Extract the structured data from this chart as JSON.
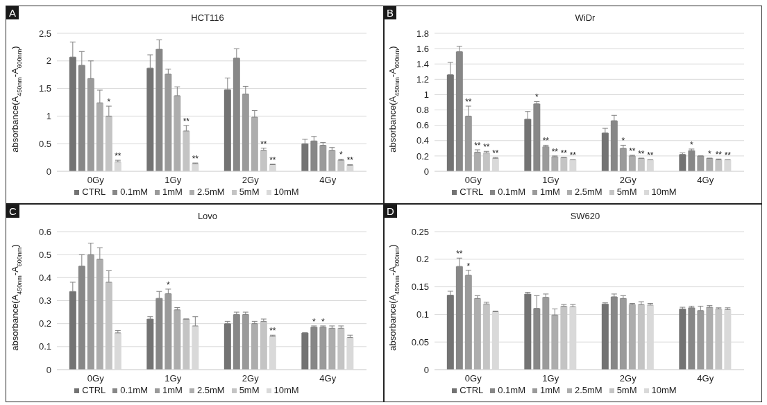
{
  "chart_data": [
    {
      "type": "bar",
      "title": "HCT116",
      "annotations": [
        "A"
      ],
      "ylabel": "absorbance(A$_{450nm}$-A$_{600nm}$)",
      "categories": [
        "0Gy",
        "1Gy",
        "2Gy",
        "4Gy"
      ],
      "ylim": [
        0,
        2.5
      ],
      "yticks": [
        0,
        0.5,
        1,
        1.5,
        2,
        2.5
      ],
      "grid": "y",
      "legend": "bottom",
      "series": [
        {
          "name": "CTRL",
          "color": "#737373",
          "values": [
            2.07,
            1.87,
            1.48,
            0.5
          ],
          "errors": [
            [
              2.07,
              2.34
            ],
            [
              1.87,
              2.11
            ],
            [
              1.48,
              1.69
            ],
            [
              0.5,
              0.58
            ]
          ]
        },
        {
          "name": "0.1mM",
          "color": "#878787",
          "values": [
            1.92,
            2.21,
            2.05,
            0.55
          ],
          "errors": [
            [
              1.92,
              2.17
            ],
            [
              2.21,
              2.38
            ],
            [
              2.05,
              2.22
            ],
            [
              0.55,
              0.63
            ]
          ]
        },
        {
          "name": "1mM",
          "color": "#9a9a9a",
          "values": [
            1.68,
            1.76,
            1.4,
            0.47
          ],
          "errors": [
            [
              1.68,
              2.0
            ],
            [
              1.76,
              1.85
            ],
            [
              1.4,
              1.54
            ],
            [
              0.47,
              0.52
            ]
          ]
        },
        {
          "name": "2.5mM",
          "color": "#adadad",
          "values": [
            1.24,
            1.37,
            0.98,
            0.38
          ],
          "errors": [
            [
              1.24,
              1.47
            ],
            [
              1.37,
              1.53
            ],
            [
              0.98,
              1.1
            ],
            [
              0.38,
              0.43
            ]
          ]
        },
        {
          "name": "5mM",
          "color": "#c4c4c4",
          "values": [
            1.0,
            0.73,
            0.38,
            0.2
          ],
          "errors": [
            [
              1.0,
              1.18
            ],
            [
              0.73,
              0.83
            ],
            [
              0.38,
              0.42
            ],
            [
              0.2,
              0.22
            ]
          ],
          "value_labels": [
            "*",
            "**",
            "**",
            "*"
          ]
        },
        {
          "name": "10mM",
          "color": "#d9d9d9",
          "values": [
            0.17,
            0.14,
            0.12,
            0.11
          ],
          "errors": [
            [
              0.17,
              0.2
            ],
            [
              0.14,
              0.15
            ],
            [
              0.12,
              0.13
            ],
            [
              0.11,
              0.12
            ]
          ],
          "value_labels": [
            "**",
            "**",
            "**",
            "**"
          ]
        }
      ]
    },
    {
      "type": "bar",
      "title": "WiDr",
      "annotations": [
        "B"
      ],
      "ylabel": "absorbance(A$_{450nm}$-A$_{600nm}$)",
      "categories": [
        "0Gy",
        "1Gy",
        "2Gy",
        "4Gy"
      ],
      "ylim": [
        0,
        1.8
      ],
      "yticks": [
        0,
        0.2,
        0.4,
        0.6,
        0.8,
        1,
        1.2,
        1.4,
        1.6,
        1.8
      ],
      "grid": "y",
      "legend": "bottom",
      "series": [
        {
          "name": "CTRL",
          "color": "#737373",
          "values": [
            1.26,
            0.68,
            0.5,
            0.22
          ],
          "errors": [
            [
              1.26,
              1.42
            ],
            [
              0.68,
              0.78
            ],
            [
              0.5,
              0.56
            ],
            [
              0.22,
              0.24
            ]
          ]
        },
        {
          "name": "0.1mM",
          "color": "#878787",
          "values": [
            1.56,
            0.88,
            0.66,
            0.27
          ],
          "errors": [
            [
              1.56,
              1.63
            ],
            [
              0.88,
              0.91
            ],
            [
              0.66,
              0.73
            ],
            [
              0.27,
              0.29
            ]
          ],
          "value_labels": [
            null,
            "*",
            null,
            "*"
          ]
        },
        {
          "name": "1mM",
          "color": "#9a9a9a",
          "values": [
            0.72,
            0.32,
            0.3,
            0.2
          ],
          "errors": [
            [
              0.72,
              0.85
            ],
            [
              0.32,
              0.34
            ],
            [
              0.3,
              0.34
            ],
            [
              0.2,
              0.2
            ]
          ],
          "value_labels": [
            "**",
            "**",
            "*",
            null
          ]
        },
        {
          "name": "2.5mM",
          "color": "#adadad",
          "values": [
            0.25,
            0.19,
            0.2,
            0.17
          ],
          "errors": [
            [
              0.25,
              0.28
            ],
            [
              0.19,
              0.2
            ],
            [
              0.2,
              0.21
            ],
            [
              0.17,
              0.17
            ]
          ],
          "value_labels": [
            "**",
            "**",
            "**",
            "*"
          ]
        },
        {
          "name": "5mM",
          "color": "#c4c4c4",
          "values": [
            0.24,
            0.18,
            0.17,
            0.15
          ],
          "errors": [
            [
              0.24,
              0.26
            ],
            [
              0.18,
              0.18
            ],
            [
              0.17,
              0.17
            ],
            [
              0.15,
              0.16
            ]
          ],
          "value_labels": [
            "**",
            "**",
            "**",
            "**"
          ]
        },
        {
          "name": "10mM",
          "color": "#d9d9d9",
          "values": [
            0.17,
            0.15,
            0.15,
            0.15
          ],
          "errors": [
            [
              0.17,
              0.18
            ],
            [
              0.15,
              0.15
            ],
            [
              0.15,
              0.15
            ],
            [
              0.15,
              0.15
            ]
          ],
          "value_labels": [
            "**",
            "**",
            "**",
            "**"
          ]
        }
      ]
    },
    {
      "type": "bar",
      "title": "Lovo",
      "annotations": [
        "C"
      ],
      "ylabel": "absorbance(A$_{450nm}$-A$_{600nm}$)",
      "categories": [
        "0Gy",
        "1Gy",
        "2Gy",
        "4Gy"
      ],
      "ylim": [
        0,
        0.6
      ],
      "yticks": [
        0,
        0.1,
        0.2,
        0.3,
        0.4,
        0.5,
        0.6
      ],
      "grid": "y",
      "legend": "bottom",
      "series": [
        {
          "name": "CTRL",
          "color": "#737373",
          "values": [
            0.34,
            0.22,
            0.2,
            0.16
          ],
          "errors": [
            [
              0.34,
              0.38
            ],
            [
              0.22,
              0.23
            ],
            [
              0.2,
              0.21
            ],
            [
              0.16,
              0.16
            ]
          ]
        },
        {
          "name": "0.1mM",
          "color": "#878787",
          "values": [
            0.45,
            0.31,
            0.24,
            0.185
          ],
          "errors": [
            [
              0.45,
              0.5
            ],
            [
              0.31,
              0.34
            ],
            [
              0.24,
              0.25
            ],
            [
              0.185,
              0.19
            ]
          ],
          "value_labels": [
            null,
            null,
            null,
            "*"
          ]
        },
        {
          "name": "1mM",
          "color": "#9a9a9a",
          "values": [
            0.5,
            0.33,
            0.24,
            0.185
          ],
          "errors": [
            [
              0.5,
              0.55
            ],
            [
              0.33,
              0.35
            ],
            [
              0.24,
              0.25
            ],
            [
              0.185,
              0.19
            ]
          ],
          "value_labels": [
            null,
            "*",
            null,
            "*"
          ]
        },
        {
          "name": "2.5mM",
          "color": "#adadad",
          "values": [
            0.48,
            0.26,
            0.2,
            0.18
          ],
          "errors": [
            [
              0.48,
              0.53
            ],
            [
              0.26,
              0.27
            ],
            [
              0.2,
              0.21
            ],
            [
              0.18,
              0.19
            ]
          ]
        },
        {
          "name": "5mM",
          "color": "#c4c4c4",
          "values": [
            0.38,
            0.22,
            0.21,
            0.18
          ],
          "errors": [
            [
              0.38,
              0.43
            ],
            [
              0.22,
              0.22
            ],
            [
              0.21,
              0.22
            ],
            [
              0.18,
              0.19
            ]
          ]
        },
        {
          "name": "10mM",
          "color": "#d9d9d9",
          "values": [
            0.16,
            0.19,
            0.145,
            0.14
          ],
          "errors": [
            [
              0.16,
              0.17
            ],
            [
              0.19,
              0.23
            ],
            [
              0.145,
              0.15
            ],
            [
              0.14,
              0.15
            ]
          ],
          "value_labels": [
            null,
            null,
            "**",
            null
          ]
        }
      ]
    },
    {
      "type": "bar",
      "title": "SW620",
      "annotations": [
        "D"
      ],
      "ylabel": "absorbance(A$_{450nm}$-A$_{600nm}$)",
      "categories": [
        "0Gy",
        "1Gy",
        "2Gy",
        "4Gy"
      ],
      "ylim": [
        0,
        0.25
      ],
      "yticks": [
        0,
        0.05,
        0.1,
        0.15,
        0.2,
        0.25
      ],
      "grid": "y",
      "legend": "bottom",
      "series": [
        {
          "name": "CTRL",
          "color": "#737373",
          "values": [
            0.135,
            0.137,
            0.119,
            0.11
          ],
          "errors": [
            [
              0.135,
              0.142
            ],
            [
              0.137,
              0.14
            ],
            [
              0.119,
              0.121
            ],
            [
              0.11,
              0.113
            ]
          ]
        },
        {
          "name": "0.1mM",
          "color": "#878787",
          "values": [
            0.187,
            0.111,
            0.132,
            0.112
          ],
          "errors": [
            [
              0.187,
              0.202
            ],
            [
              0.111,
              0.134
            ],
            [
              0.132,
              0.137
            ],
            [
              0.112,
              0.115
            ]
          ],
          "value_labels": [
            "**",
            null,
            null,
            null
          ]
        },
        {
          "name": "1mM",
          "color": "#9a9a9a",
          "values": [
            0.171,
            0.131,
            0.129,
            0.107
          ],
          "errors": [
            [
              0.171,
              0.18
            ],
            [
              0.131,
              0.137
            ],
            [
              0.129,
              0.134
            ],
            [
              0.107,
              0.115
            ]
          ],
          "value_labels": [
            "*",
            null,
            null,
            null
          ]
        },
        {
          "name": "2.5mM",
          "color": "#adadad",
          "values": [
            0.129,
            0.099,
            0.118,
            0.113
          ],
          "errors": [
            [
              0.129,
              0.134
            ],
            [
              0.099,
              0.11
            ],
            [
              0.118,
              0.12
            ],
            [
              0.113,
              0.116
            ]
          ]
        },
        {
          "name": "5mM",
          "color": "#c4c4c4",
          "values": [
            0.119,
            0.115,
            0.118,
            0.11
          ],
          "errors": [
            [
              0.119,
              0.122
            ],
            [
              0.115,
              0.118
            ],
            [
              0.118,
              0.123
            ],
            [
              0.11,
              0.112
            ]
          ]
        },
        {
          "name": "10mM",
          "color": "#d9d9d9",
          "values": [
            0.105,
            0.114,
            0.117,
            0.109
          ],
          "errors": [
            [
              0.105,
              0.106
            ],
            [
              0.114,
              0.118
            ],
            [
              0.117,
              0.12
            ],
            [
              0.109,
              0.112
            ]
          ]
        }
      ]
    }
  ]
}
